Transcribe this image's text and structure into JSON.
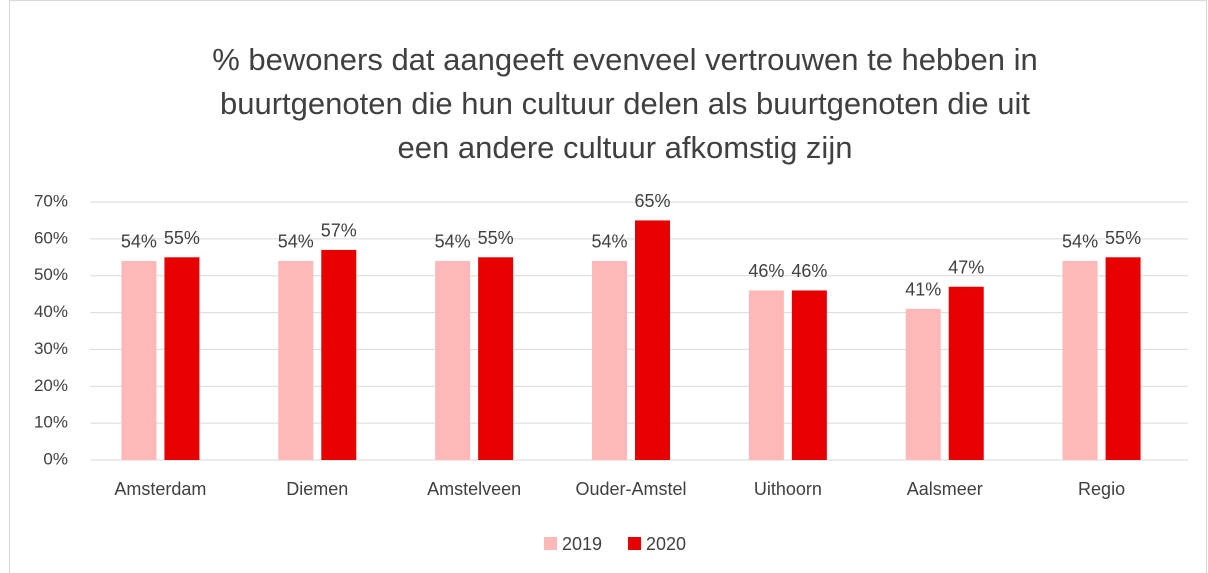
{
  "chart_data": {
    "type": "bar",
    "title": [
      "% bewoners dat aangeeft evenveel vertrouwen te hebben in",
      "buurtgenoten die hun cultuur delen als buurtgenoten die uit",
      "een andere cultuur afkomstig zijn"
    ],
    "categories": [
      "Amsterdam",
      "Diemen",
      "Amstelveen",
      "Ouder-Amstel",
      "Uithoorn",
      "Aalsmeer",
      "Regio"
    ],
    "series": [
      {
        "name": "2019",
        "color": "#ffb8b8",
        "values": [
          54,
          54,
          54,
          54,
          46,
          41,
          54
        ],
        "value_labels": [
          "54%",
          "54%",
          "54%",
          "54%",
          "46%",
          "41%",
          "54%"
        ]
      },
      {
        "name": "2020",
        "color": "#e60000",
        "values": [
          55,
          57,
          55,
          65,
          46,
          47,
          55
        ],
        "value_labels": [
          "55%",
          "57%",
          "55%",
          "65%",
          "46%",
          "47%",
          "55%"
        ]
      }
    ],
    "ylim": [
      0,
      70
    ],
    "yticks": [
      {
        "value": 0,
        "label": "0%"
      },
      {
        "value": 10,
        "label": "10%"
      },
      {
        "value": 20,
        "label": "20%"
      },
      {
        "value": 30,
        "label": "30%"
      },
      {
        "value": 40,
        "label": "40%"
      },
      {
        "value": 50,
        "label": "50%"
      },
      {
        "value": 60,
        "label": "60%"
      },
      {
        "value": 70,
        "label": "70%"
      }
    ],
    "grid": true,
    "legend": "bottom"
  }
}
